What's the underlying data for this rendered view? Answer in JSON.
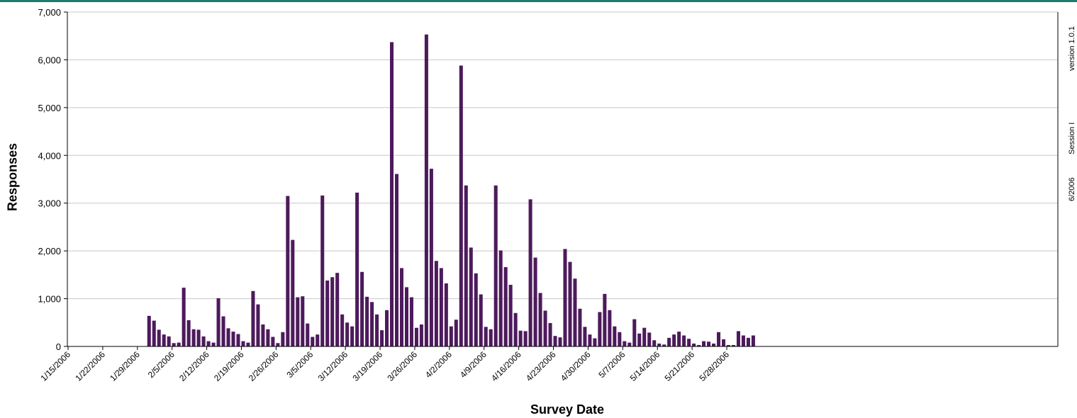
{
  "chart_data": {
    "type": "bar",
    "xlabel": "Survey Date",
    "ylabel": "Responses",
    "ylim": [
      0,
      7000
    ],
    "yticks": [
      0,
      1000,
      2000,
      3000,
      4000,
      5000,
      6000,
      7000
    ],
    "ytick_labels": [
      "0",
      "1,000",
      "2,000",
      "3,000",
      "4,000",
      "5,000",
      "6,000",
      "7,000"
    ],
    "xtick_labels": [
      "1/15/2006",
      "1/22/2006",
      "1/29/2006",
      "2/5/2006",
      "2/12/2006",
      "2/19/2006",
      "2/26/2006",
      "3/5/2006",
      "3/12/2006",
      "3/19/2006",
      "3/26/2006",
      "4/2/2006",
      "4/9/2006",
      "4/16/2006",
      "4/23/2006",
      "4/30/2006",
      "5/7/2006",
      "5/14/2006",
      "5/21/2006",
      "5/28/2006"
    ],
    "start_date": "1/15/2006",
    "bar_color": "#4d1a5c",
    "grid": true,
    "values": [
      0,
      0,
      0,
      0,
      0,
      0,
      0,
      0,
      0,
      0,
      0,
      0,
      0,
      0,
      0,
      640,
      540,
      350,
      250,
      210,
      70,
      80,
      1230,
      550,
      360,
      350,
      210,
      110,
      80,
      1010,
      630,
      380,
      310,
      260,
      110,
      80,
      1160,
      880,
      460,
      360,
      200,
      70,
      300,
      3150,
      2230,
      1030,
      1050,
      480,
      200,
      250,
      3160,
      1380,
      1450,
      1540,
      670,
      500,
      420,
      3220,
      1560,
      1040,
      930,
      670,
      340,
      760,
      6370,
      3610,
      1640,
      1240,
      1030,
      390,
      460,
      6530,
      3720,
      1790,
      1640,
      1320,
      420,
      560,
      5880,
      3370,
      2070,
      1530,
      1090,
      410,
      360,
      3370,
      2010,
      1660,
      1290,
      700,
      330,
      320,
      3080,
      1860,
      1120,
      750,
      490,
      220,
      190,
      2040,
      1770,
      1420,
      790,
      410,
      250,
      170,
      720,
      1100,
      760,
      420,
      300,
      110,
      80,
      570,
      270,
      390,
      290,
      130,
      60,
      40,
      180,
      250,
      310,
      230,
      160,
      60,
      30,
      110,
      100,
      60,
      300,
      150,
      30,
      30,
      320,
      230,
      180,
      230
    ]
  },
  "side_notes": {
    "version": "version 1.0.1",
    "session": "Session I",
    "date": "6/2006"
  }
}
